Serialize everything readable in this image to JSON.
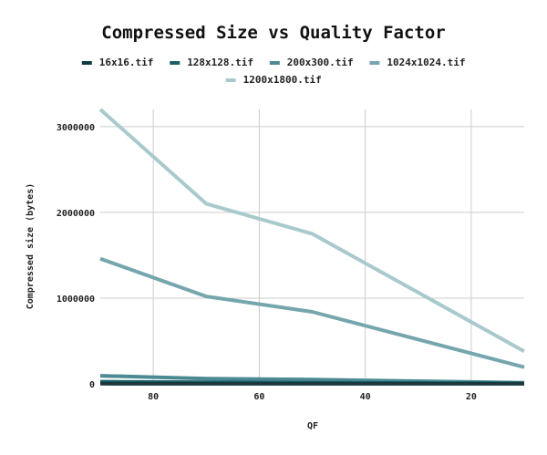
{
  "chart_data": {
    "type": "line",
    "title": "Compressed Size vs Quality Factor",
    "xlabel": "QF",
    "ylabel": "Compressed size (bytes)",
    "xlim": [
      90,
      10
    ],
    "ylim": [
      0,
      3200000
    ],
    "xticks": [
      80,
      60,
      40,
      20
    ],
    "yticks": [
      0,
      1000000,
      2000000,
      3000000
    ],
    "ytick_labels": [
      "0",
      "1000000",
      "2000000",
      "3000000"
    ],
    "grid": true,
    "legend_position": "top",
    "x": [
      90,
      70,
      50,
      10
    ],
    "series": [
      {
        "name": "16x16.tif",
        "color": "#0b3d44",
        "values": [
          2000,
          1500,
          1200,
          600
        ]
      },
      {
        "name": "128x128.tif",
        "color": "#1c5f66",
        "values": [
          25000,
          18000,
          14000,
          6000
        ]
      },
      {
        "name": "200x300.tif",
        "color": "#4b8a92",
        "values": [
          95000,
          62000,
          50000,
          14000
        ]
      },
      {
        "name": "1024x1024.tif",
        "color": "#75a6ad",
        "values": [
          1460000,
          1020000,
          840000,
          195000
        ]
      },
      {
        "name": "1200x1800.tif",
        "color": "#a9c9cd",
        "values": [
          3200000,
          2100000,
          1750000,
          380000
        ]
      }
    ]
  }
}
